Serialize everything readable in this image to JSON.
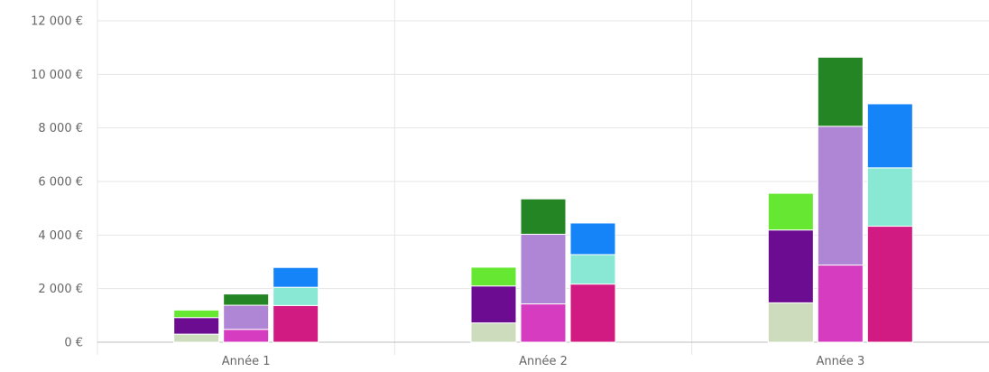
{
  "chart_data": {
    "type": "bar",
    "stacked": true,
    "grid": true,
    "categories": [
      "Année 1",
      "Année 2",
      "Année 3"
    ],
    "ylim": [
      0,
      12000
    ],
    "yticks": [
      0,
      2000,
      4000,
      6000,
      8000,
      10000,
      12000
    ],
    "ytick_labels": [
      "0 €",
      "2 000 €",
      "4 000 €",
      "6 000 €",
      "8 000 €",
      "10 000 €",
      "12 000 €"
    ],
    "stacks": [
      {
        "series": [
          {
            "color": "#cddcbd",
            "values": [
              300,
              720,
              1470
            ]
          },
          {
            "color": "#6b0c91",
            "values": [
              620,
              1380,
              2720
            ]
          },
          {
            "color": "#66e832",
            "values": [
              280,
              700,
              1370
            ]
          }
        ]
      },
      {
        "series": [
          {
            "color": "#d63cbf",
            "values": [
              480,
              1430,
              2880
            ]
          },
          {
            "color": "#af86d6",
            "values": [
              900,
              2600,
              5180
            ]
          },
          {
            "color": "#238523",
            "values": [
              420,
              1320,
              2580
            ]
          }
        ]
      },
      {
        "series": [
          {
            "color": "#d11a82",
            "values": [
              1370,
              2170,
              4330
            ]
          },
          {
            "color": "#88e8d4",
            "values": [
              680,
              1100,
              2180
            ]
          },
          {
            "color": "#1484f8",
            "values": [
              740,
              1180,
              2390
            ]
          }
        ]
      }
    ]
  }
}
